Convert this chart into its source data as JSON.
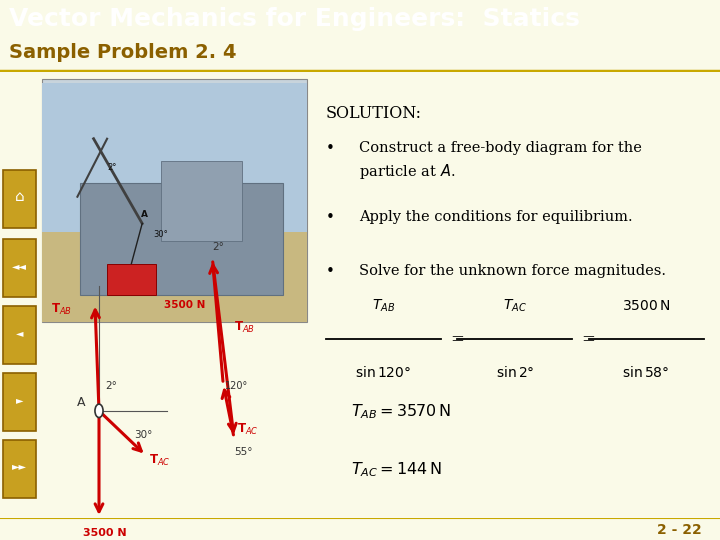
{
  "title": "Vector Mechanics for Engineers:  Statics",
  "subtitle": "Sample Problem 2. 4",
  "title_bg": "#6B0000",
  "subtitle_bg": "#F5F5A0",
  "body_bg": "#FAFAE8",
  "title_color": "#FFFFFF",
  "subtitle_color": "#8B6000",
  "solution_header": "SOLUTION:",
  "page_number": "2 - 22",
  "red": "#CC0000",
  "dark": "#222222",
  "gray": "#666666",
  "gold_border": "#C8A800"
}
